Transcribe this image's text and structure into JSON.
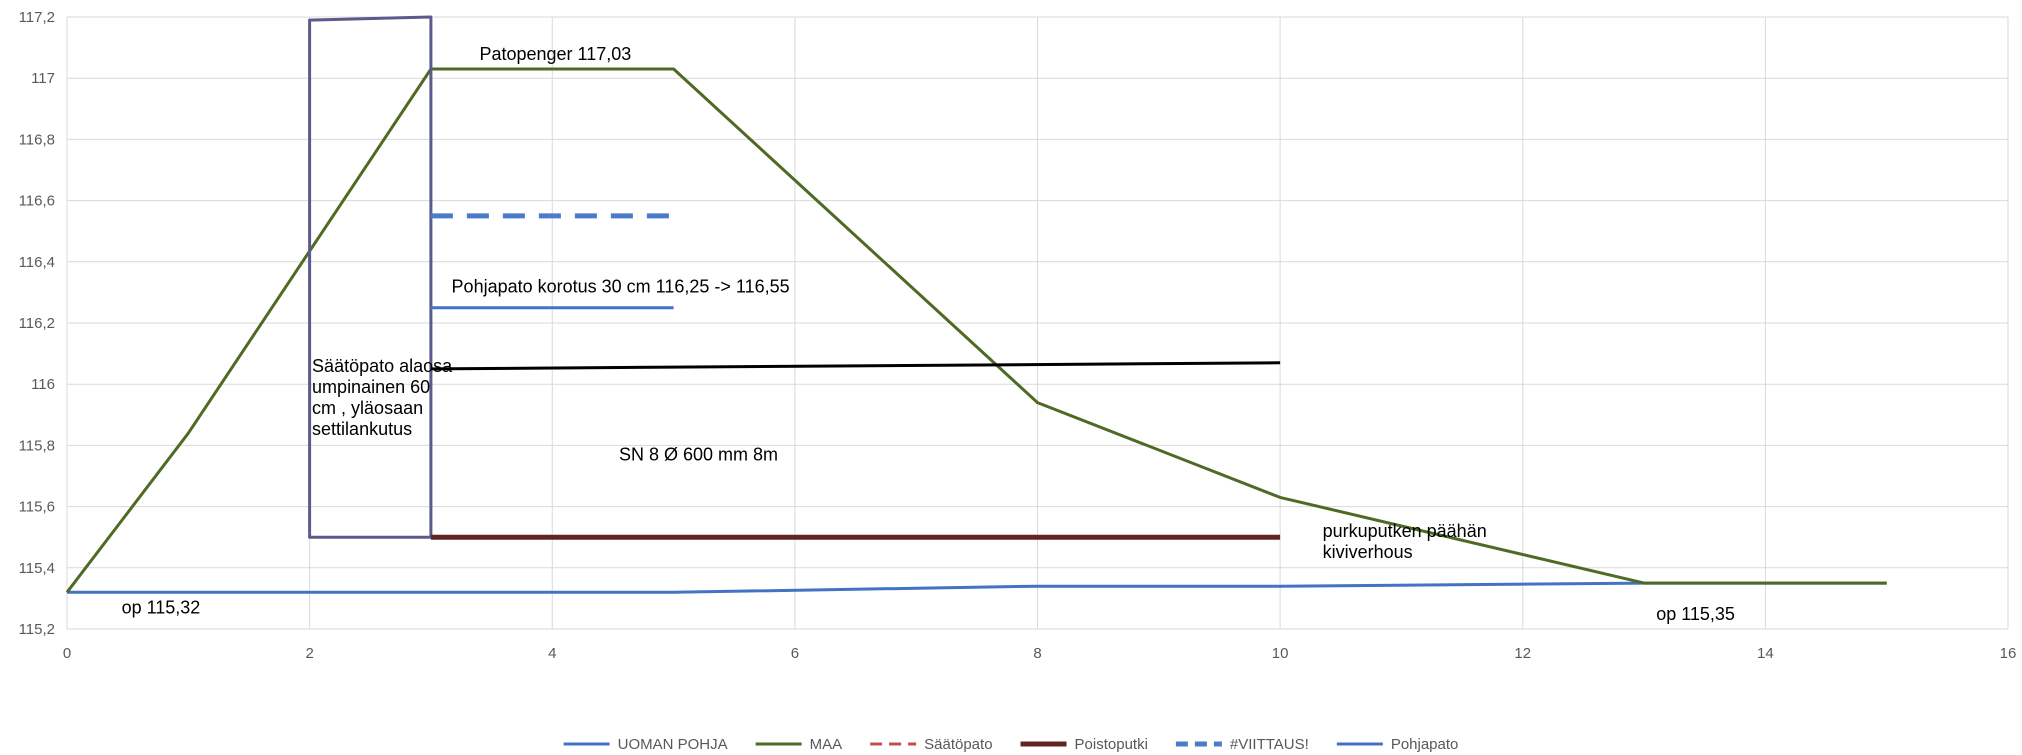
{
  "chart_data": {
    "type": "line",
    "xlim": [
      0,
      16
    ],
    "ylim": [
      115.2,
      117.2
    ],
    "x_ticks": [
      0,
      2,
      4,
      6,
      8,
      10,
      12,
      14,
      16
    ],
    "y_ticks": [
      115.2,
      115.4,
      115.6,
      115.8,
      116,
      116.2,
      116.4,
      116.6,
      116.8,
      117,
      117.2
    ],
    "y_tick_labels": [
      "115,2",
      "115,4",
      "115,6",
      "115,8",
      "116",
      "116,2",
      "116,4",
      "116,6",
      "116,8",
      "117",
      "117,2"
    ],
    "grid": true,
    "legend_position": "bottom",
    "series": [
      {
        "name": "UOMAN POHJA",
        "color": "#4472C4",
        "dash": "solid",
        "legend": true,
        "x": [
          0,
          5,
          8,
          10,
          13,
          15
        ],
        "y": [
          115.32,
          115.32,
          115.34,
          115.34,
          115.35,
          115.35
        ]
      },
      {
        "name": "MAA",
        "color": "#4E6A24",
        "dash": "solid",
        "legend": true,
        "x": [
          0,
          1,
          3,
          5,
          8,
          10,
          13,
          15
        ],
        "y": [
          115.32,
          115.84,
          117.03,
          117.03,
          115.94,
          115.63,
          115.35,
          115.35
        ]
      },
      {
        "name": "Säätöpato",
        "color": "#5B5A8E",
        "dash": "solid",
        "legend_color": "#C0504D",
        "legend_dash": "dash",
        "legend": true,
        "x": [
          2,
          2,
          3,
          3,
          2,
          2
        ],
        "y": [
          115.5,
          117.19,
          117.2,
          115.5,
          115.5,
          117.19
        ]
      },
      {
        "name": "Poistoputki",
        "color": "#632523",
        "dash": "solid",
        "width": 5,
        "legend": true,
        "x": [
          3,
          10
        ],
        "y": [
          115.5,
          115.5
        ]
      },
      {
        "name": "#VIITTAUS!",
        "color": "#4A7CC9",
        "dash": "dash",
        "width": 5,
        "legend": true,
        "x": [
          3,
          5
        ],
        "y": [
          116.55,
          116.55
        ]
      },
      {
        "name": "Pohjapato",
        "color": "#4472C4",
        "dash": "solid",
        "width": 3,
        "legend": true,
        "x": [
          3,
          5
        ],
        "y": [
          116.25,
          116.25
        ]
      },
      {
        "name": "",
        "color": "#000000",
        "dash": "solid",
        "width": 3,
        "legend": false,
        "x": [
          3,
          10
        ],
        "y": [
          116.05,
          116.07
        ]
      }
    ],
    "annotations": [
      {
        "id": "patopenger",
        "x": 3.4,
        "y": 117.06,
        "lines": [
          "Patopenger 117,03"
        ]
      },
      {
        "id": "pohjapato-korotus",
        "x": 3.17,
        "y": 116.3,
        "lines": [
          "Pohjapato korotus  30 cm 116,25 -> 116,55"
        ]
      },
      {
        "id": "saatopato-note",
        "x": 2.02,
        "y": 116.04,
        "lines": [
          "Säätöpato alaosa",
          "umpinainen 60",
          "cm , yläosaan",
          "settilankutus"
        ]
      },
      {
        "id": "sn8",
        "x": 4.55,
        "y": 115.75,
        "lines": [
          "SN 8 Ø 600 mm 8m"
        ]
      },
      {
        "id": "purkuputken",
        "x": 10.35,
        "y": 115.5,
        "lines": [
          "purkuputken päähän",
          "kiviverhous"
        ]
      },
      {
        "id": "op-left",
        "x": 0.45,
        "y": 115.25,
        "lines": [
          "op 115,32"
        ]
      },
      {
        "id": "op-right",
        "x": 13.1,
        "y": 115.23,
        "lines": [
          "op 115,35"
        ]
      }
    ]
  }
}
